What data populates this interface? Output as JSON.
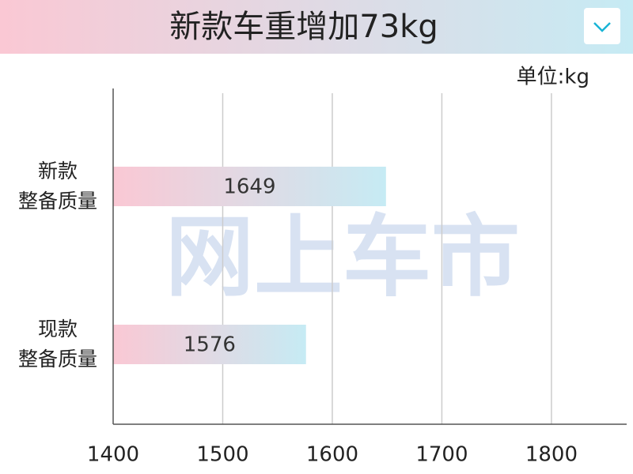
{
  "chart_data": {
    "type": "hbar",
    "title": "新款车重增加73kg",
    "unit_label": "单位:kg",
    "watermark": "网上车市",
    "categories": [
      "新款\n整备质量",
      "现款\n整备质量"
    ],
    "values": [
      1649,
      1576
    ],
    "color_start": "#fac8d4",
    "color_end": "#c6ebf4",
    "xlim": [
      1400,
      1860
    ],
    "xticks": [
      1400,
      1500,
      1600,
      1700,
      1800
    ],
    "grid": true
  }
}
